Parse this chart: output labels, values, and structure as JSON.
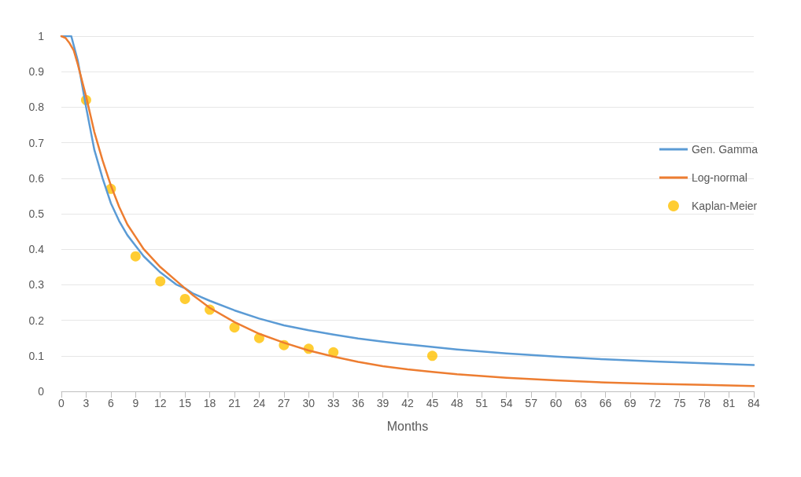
{
  "chart_data": {
    "type": "line",
    "xlabel": "Months",
    "xlim": [
      0,
      84
    ],
    "xticks": [
      0,
      3,
      6,
      9,
      12,
      15,
      18,
      21,
      24,
      27,
      30,
      33,
      36,
      39,
      42,
      45,
      48,
      51,
      54,
      57,
      60,
      63,
      66,
      69,
      72,
      75,
      78,
      81,
      84
    ],
    "ylim": [
      0,
      1
    ],
    "yticks": [
      0,
      0.1,
      0.2,
      0.3,
      0.4,
      0.5,
      0.6,
      0.7,
      0.8,
      0.9,
      1
    ],
    "grid": "y",
    "legend": "right",
    "marker": "none",
    "line_style": "solid",
    "series": [
      {
        "name": "Gen. Gamma",
        "color": "#5b9bd5",
        "x": [
          0,
          1.2,
          2,
          3,
          4,
          5,
          6,
          7,
          8,
          9,
          10,
          12,
          14,
          15,
          16,
          18,
          21,
          24,
          27,
          30,
          33,
          36,
          39,
          42,
          45,
          48,
          54,
          60,
          66,
          72,
          78,
          84
        ],
        "values": [
          1,
          1,
          0.93,
          0.8,
          0.68,
          0.6,
          0.53,
          0.48,
          0.44,
          0.41,
          0.38,
          0.335,
          0.3,
          0.29,
          0.275,
          0.255,
          0.228,
          0.205,
          0.186,
          0.172,
          0.16,
          0.149,
          0.14,
          0.132,
          0.125,
          0.118,
          0.107,
          0.098,
          0.09,
          0.084,
          0.079,
          0.074
        ]
      },
      {
        "name": "Log-normal",
        "color": "#ed7d31",
        "x": [
          0,
          0.5,
          1,
          1.5,
          2,
          3,
          4,
          5,
          6,
          7,
          8,
          9,
          10,
          12,
          14,
          15,
          16,
          18,
          21,
          24,
          27,
          30,
          33,
          36,
          39,
          42,
          45,
          48,
          54,
          60,
          66,
          72,
          78,
          84
        ],
        "values": [
          1,
          0.995,
          0.98,
          0.96,
          0.92,
          0.83,
          0.73,
          0.65,
          0.58,
          0.52,
          0.47,
          0.435,
          0.4,
          0.35,
          0.31,
          0.29,
          0.27,
          0.235,
          0.195,
          0.162,
          0.137,
          0.115,
          0.098,
          0.083,
          0.071,
          0.062,
          0.055,
          0.048,
          0.038,
          0.031,
          0.025,
          0.021,
          0.018,
          0.015
        ]
      },
      {
        "name": "Kaplan-Meier",
        "color": "#ffc000",
        "type": "scatter",
        "marker": "circle",
        "x": [
          3,
          6,
          9,
          12,
          15,
          18,
          21,
          24,
          27,
          30,
          33,
          45
        ],
        "values": [
          0.82,
          0.57,
          0.38,
          0.31,
          0.26,
          0.23,
          0.18,
          0.15,
          0.13,
          0.12,
          0.11,
          0.1
        ]
      }
    ]
  }
}
